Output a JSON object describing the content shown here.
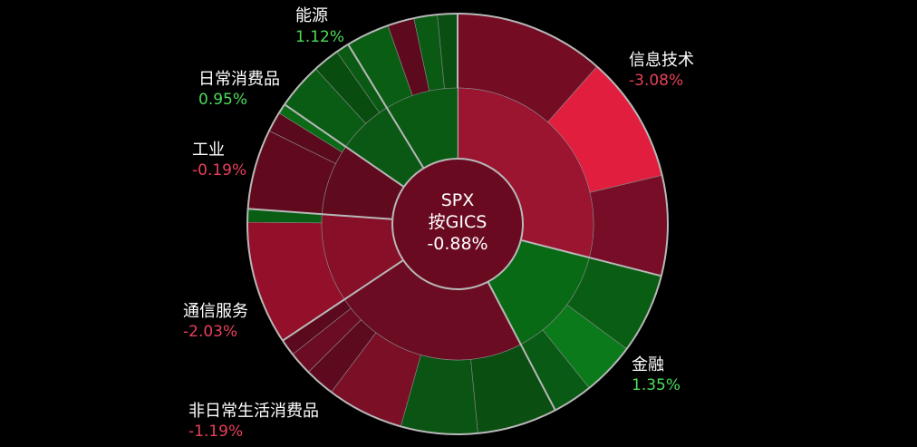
{
  "chart_data": {
    "type": "sunburst",
    "center": {
      "line1": "SPX",
      "line2": "按GICS",
      "value": "-0.88%"
    },
    "colors": {
      "background": "#000000",
      "positive_text": "#4ddc5a",
      "negative_text": "#e8405a",
      "border": "#b8b8b8"
    },
    "sectors": [
      {
        "name": "信息技术",
        "value": "-3.08%",
        "change": -3.08,
        "color": "#9b1430",
        "children": [
          {
            "color": "#740c24",
            "span": 45
          },
          {
            "color": "#e21e3e",
            "span": 38
          },
          {
            "color": "#770d26",
            "span": 30
          }
        ]
      },
      {
        "name": "金融",
        "value": "1.35%",
        "change": 1.35,
        "color": "#096a16",
        "children": [
          {
            "color": "#0a5e14",
            "span": 24
          },
          {
            "color": "#0a7a1b",
            "span": 16
          },
          {
            "color": "#095a14",
            "span": 12
          }
        ]
      },
      {
        "name": "非日常生活消费品",
        "value": "-1.19%",
        "change": -1.19,
        "color": "#6c0c22",
        "children": [
          {
            "color": "#0a4e12",
            "span": 24
          },
          {
            "color": "#0a5514",
            "span": 23
          },
          {
            "color": "#7a0f26",
            "span": 23
          },
          {
            "color": "#5d0a1e",
            "span": 9
          },
          {
            "color": "#6c0c22",
            "span": 7
          },
          {
            "color": "#5a0a1c",
            "span": 5
          }
        ]
      },
      {
        "name": "通信服务",
        "value": "-2.03%",
        "change": -2.03,
        "color": "#880f28",
        "children": [
          {
            "color": "#930f2a",
            "span": 37
          },
          {
            "color": "#0a5e14",
            "span": 4
          }
        ]
      },
      {
        "name": "工业",
        "value": "-0.19%",
        "change": -0.19,
        "color": "#600a1e",
        "children": [
          {
            "color": "#610a1e",
            "span": 24
          },
          {
            "color": "#5a0a1c",
            "span": 6
          },
          {
            "color": "#0a6a16",
            "span": 3
          }
        ]
      },
      {
        "name": "日常消费品",
        "value": "0.95%",
        "change": 0.95,
        "color": "#0b5815",
        "children": [
          {
            "color": "#0a5c14",
            "span": 14
          },
          {
            "color": "#084c10",
            "span": 8
          },
          {
            "color": "#0a5a14",
            "span": 4
          }
        ]
      },
      {
        "name": "能源",
        "value": "1.12%",
        "change": 1.12,
        "color": "#0a5a14",
        "children": [
          {
            "color": "#0a5e14",
            "span": 13
          },
          {
            "color": "#5e0a1e",
            "span": 8
          },
          {
            "color": "#0a5a14",
            "span": 7
          },
          {
            "color": "#0a4e12",
            "span": 6
          }
        ]
      }
    ]
  }
}
